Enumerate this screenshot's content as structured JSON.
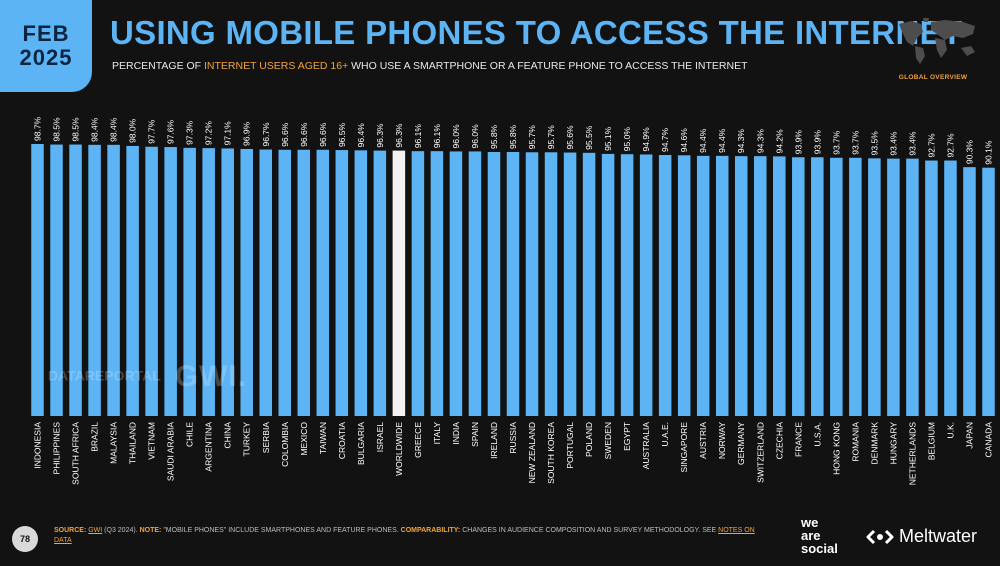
{
  "header": {
    "month": "FEB",
    "year": "2025",
    "title": "USING MOBILE PHONES TO ACCESS THE INTERNET",
    "subtitle_pre": "PERCENTAGE OF ",
    "subtitle_highlight": "INTERNET USERS AGED 16+",
    "subtitle_post": " WHO USE A SMARTPHONE OR A FEATURE PHONE TO ACCESS THE INTERNET",
    "map_label": "GLOBAL OVERVIEW"
  },
  "colors": {
    "accent": "#5cb4f5",
    "highlight": "#f2a33a",
    "bar": "#5cb4f5",
    "bar_highlight": "#f2f2f2",
    "background": "#121212"
  },
  "chart_data": {
    "type": "bar",
    "categories": [
      "INDONESIA",
      "PHILIPPINES",
      "SOUTH AFRICA",
      "BRAZIL",
      "MALAYSIA",
      "THAILAND",
      "VIETNAM",
      "SAUDI ARABIA",
      "CHILE",
      "ARGENTINA",
      "CHINA",
      "TURKEY",
      "SERBIA",
      "COLOMBIA",
      "MEXICO",
      "TAIWAN",
      "CROATIA",
      "BULGARIA",
      "ISRAEL",
      "WORLDWIDE",
      "GREECE",
      "ITALY",
      "INDIA",
      "SPAIN",
      "IRELAND",
      "RUSSIA",
      "NEW ZEALAND",
      "SOUTH KOREA",
      "PORTUGAL",
      "POLAND",
      "SWEDEN",
      "EGYPT",
      "AUSTRALIA",
      "U.A.E.",
      "SINGAPORE",
      "AUSTRIA",
      "NORWAY",
      "GERMANY",
      "SWITZERLAND",
      "CZECHIA",
      "FRANCE",
      "U.S.A.",
      "HONG KONG",
      "ROMANIA",
      "DENMARK",
      "HUNGARY",
      "NETHERLANDS",
      "BELGIUM",
      "U.K.",
      "JAPAN",
      "CANADA"
    ],
    "values": [
      98.7,
      98.5,
      98.5,
      98.4,
      98.4,
      98.0,
      97.7,
      97.6,
      97.3,
      97.2,
      97.1,
      96.9,
      96.7,
      96.6,
      96.6,
      96.6,
      96.5,
      96.4,
      96.3,
      96.3,
      96.1,
      96.1,
      96.0,
      96.0,
      95.8,
      95.8,
      95.7,
      95.7,
      95.6,
      95.5,
      95.1,
      95.0,
      94.9,
      94.7,
      94.6,
      94.4,
      94.4,
      94.3,
      94.3,
      94.2,
      93.9,
      93.9,
      93.7,
      93.7,
      93.5,
      93.4,
      93.4,
      92.7,
      92.7,
      90.3,
      90.1
    ],
    "value_labels": [
      "98.7%",
      "98.5%",
      "98.5%",
      "98.4%",
      "98.4%",
      "98.0%",
      "97.7%",
      "97.6%",
      "97.3%",
      "97.2%",
      "97.1%",
      "96.9%",
      "96.7%",
      "96.6%",
      "96.6%",
      "96.6%",
      "96.5%",
      "96.4%",
      "96.3%",
      "96.3%",
      "96.1%",
      "96.1%",
      "96.0%",
      "96.0%",
      "95.8%",
      "95.8%",
      "95.7%",
      "95.7%",
      "95.6%",
      "95.5%",
      "95.1%",
      "95.0%",
      "94.9%",
      "94.7%",
      "94.6%",
      "94.4%",
      "94.4%",
      "94.3%",
      "94.3%",
      "94.2%",
      "93.9%",
      "93.9%",
      "93.7%",
      "93.7%",
      "93.5%",
      "93.4%",
      "93.4%",
      "92.7%",
      "92.7%",
      "90.3%",
      "90.1%"
    ],
    "highlight_category": "WORLDWIDE",
    "ylim": [
      0,
      100
    ]
  },
  "watermark": {
    "left": "DATAREPORTAL",
    "right": "GWI."
  },
  "footer": {
    "page_number": "78",
    "source_label": "SOURCE:",
    "source_link": "GWI",
    "source_text": " (Q3 2024). ",
    "note_label": "NOTE:",
    "note_text": " \"MOBILE PHONES\" INCLUDE SMARTPHONES AND FEATURE PHONES. ",
    "comparability_label": "COMPARABILITY:",
    "comparability_text": " CHANGES IN AUDIENCE COMPOSITION AND SURVEY METHODOLOGY. SEE ",
    "notes_link": "NOTES ON DATA",
    "brand_left_1": "we",
    "brand_left_2": "are",
    "brand_left_3": "social",
    "brand_right": "Meltwater"
  }
}
